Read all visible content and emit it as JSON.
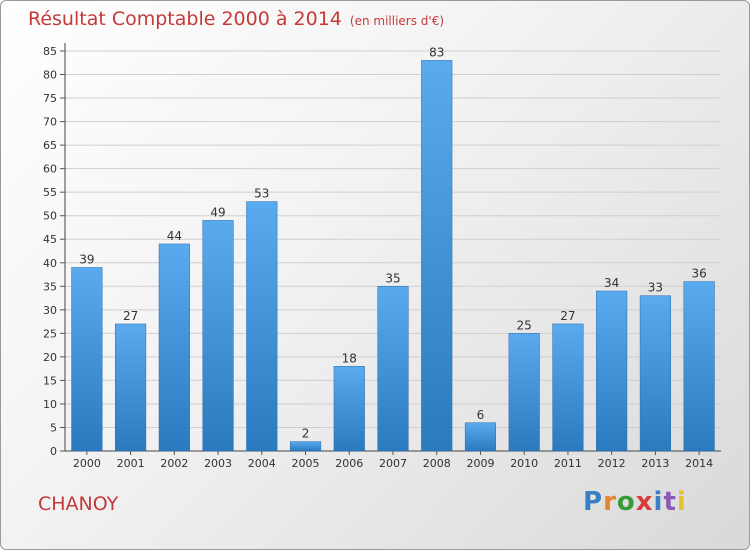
{
  "title": "Résultat Comptable 2000 à 2014",
  "unit_note": "(en milliers d'€)",
  "commune": "CHANOY",
  "logo": {
    "text": "Proxiti",
    "letters": [
      "P",
      "r",
      "o",
      "x",
      "i",
      "t",
      "i"
    ],
    "colors": [
      "#3a7fc4",
      "#e8842c",
      "#3a9a3a",
      "#d93a3a",
      "#3a7fc4",
      "#8a5ab4",
      "#e8c22c"
    ]
  },
  "colors": {
    "bar_top": "#5aaaf0",
    "bar_bottom": "#2a7ac0",
    "title": "#c43a3a",
    "grid": "#cfcfcf"
  },
  "chart_data": {
    "type": "bar",
    "title": "Résultat Comptable 2000 à 2014",
    "ylabel": "en milliers d'€",
    "xlabel": "",
    "categories": [
      "2000",
      "2001",
      "2002",
      "2003",
      "2004",
      "2005",
      "2006",
      "2007",
      "2008",
      "2009",
      "2010",
      "2011",
      "2012",
      "2013",
      "2014"
    ],
    "values": [
      39,
      27,
      44,
      49,
      53,
      2,
      18,
      35,
      83,
      6,
      25,
      27,
      34,
      33,
      36
    ],
    "ylim": [
      0,
      85
    ],
    "yticks": [
      0,
      5,
      10,
      15,
      20,
      25,
      30,
      35,
      40,
      45,
      50,
      55,
      60,
      65,
      70,
      75,
      80,
      85
    ],
    "grid": true
  }
}
